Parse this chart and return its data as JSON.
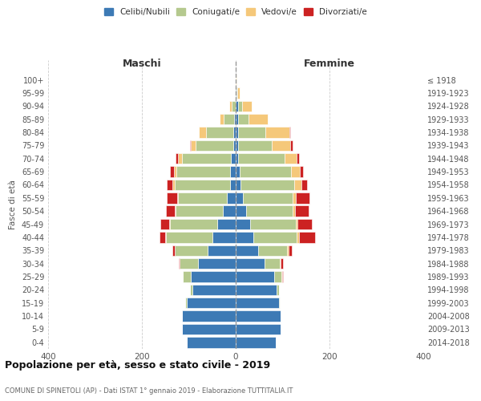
{
  "age_groups": [
    "0-4",
    "5-9",
    "10-14",
    "15-19",
    "20-24",
    "25-29",
    "30-34",
    "35-39",
    "40-44",
    "45-49",
    "50-54",
    "55-59",
    "60-64",
    "65-69",
    "70-74",
    "75-79",
    "80-84",
    "85-89",
    "90-94",
    "95-99",
    "100+"
  ],
  "birth_years": [
    "2014-2018",
    "2009-2013",
    "2004-2008",
    "1999-2003",
    "1994-1998",
    "1989-1993",
    "1984-1988",
    "1979-1983",
    "1974-1978",
    "1969-1973",
    "1964-1968",
    "1959-1963",
    "1954-1958",
    "1949-1953",
    "1944-1948",
    "1939-1943",
    "1934-1938",
    "1929-1933",
    "1924-1928",
    "1919-1923",
    "≤ 1918"
  ],
  "colors": {
    "single": "#3d7ab5",
    "married": "#b5c98e",
    "widowed": "#f5c87a",
    "divorced": "#cc2222"
  },
  "male": {
    "single": [
      105,
      115,
      115,
      105,
      92,
      95,
      80,
      60,
      50,
      40,
      28,
      18,
      12,
      12,
      10,
      5,
      5,
      3,
      0,
      0,
      0
    ],
    "married": [
      0,
      0,
      0,
      3,
      5,
      18,
      40,
      70,
      98,
      100,
      100,
      105,
      118,
      115,
      105,
      80,
      58,
      22,
      8,
      2,
      0
    ],
    "widowed": [
      0,
      0,
      0,
      0,
      0,
      0,
      0,
      0,
      2,
      2,
      2,
      2,
      5,
      5,
      8,
      10,
      15,
      10,
      5,
      0,
      0
    ],
    "divorced": [
      0,
      0,
      0,
      0,
      0,
      0,
      2,
      5,
      12,
      18,
      18,
      22,
      12,
      8,
      5,
      2,
      0,
      0,
      0,
      0,
      0
    ]
  },
  "female": {
    "single": [
      85,
      95,
      95,
      92,
      88,
      82,
      62,
      48,
      38,
      30,
      22,
      16,
      10,
      8,
      5,
      5,
      5,
      5,
      5,
      2,
      0
    ],
    "married": [
      0,
      0,
      0,
      2,
      5,
      15,
      32,
      62,
      92,
      98,
      100,
      105,
      115,
      110,
      100,
      72,
      58,
      22,
      8,
      2,
      0
    ],
    "widowed": [
      0,
      0,
      0,
      0,
      0,
      2,
      2,
      2,
      5,
      3,
      5,
      8,
      15,
      18,
      25,
      40,
      52,
      42,
      22,
      5,
      2
    ],
    "divorced": [
      0,
      0,
      0,
      0,
      0,
      2,
      5,
      8,
      35,
      32,
      28,
      28,
      12,
      8,
      5,
      5,
      2,
      0,
      0,
      0,
      0
    ]
  },
  "title": "Popolazione per età, sesso e stato civile - 2019",
  "subtitle": "COMUNE DI SPINETOLI (AP) - Dati ISTAT 1° gennaio 2019 - Elaborazione TUTTITALIA.IT",
  "xlabel_left": "Maschi",
  "xlabel_right": "Femmine",
  "ylabel_left": "Fasce di età",
  "xlim": 400,
  "legend_labels": [
    "Celibi/Nubili",
    "Coniugati/e",
    "Vedovi/e",
    "Divorziati/e"
  ]
}
